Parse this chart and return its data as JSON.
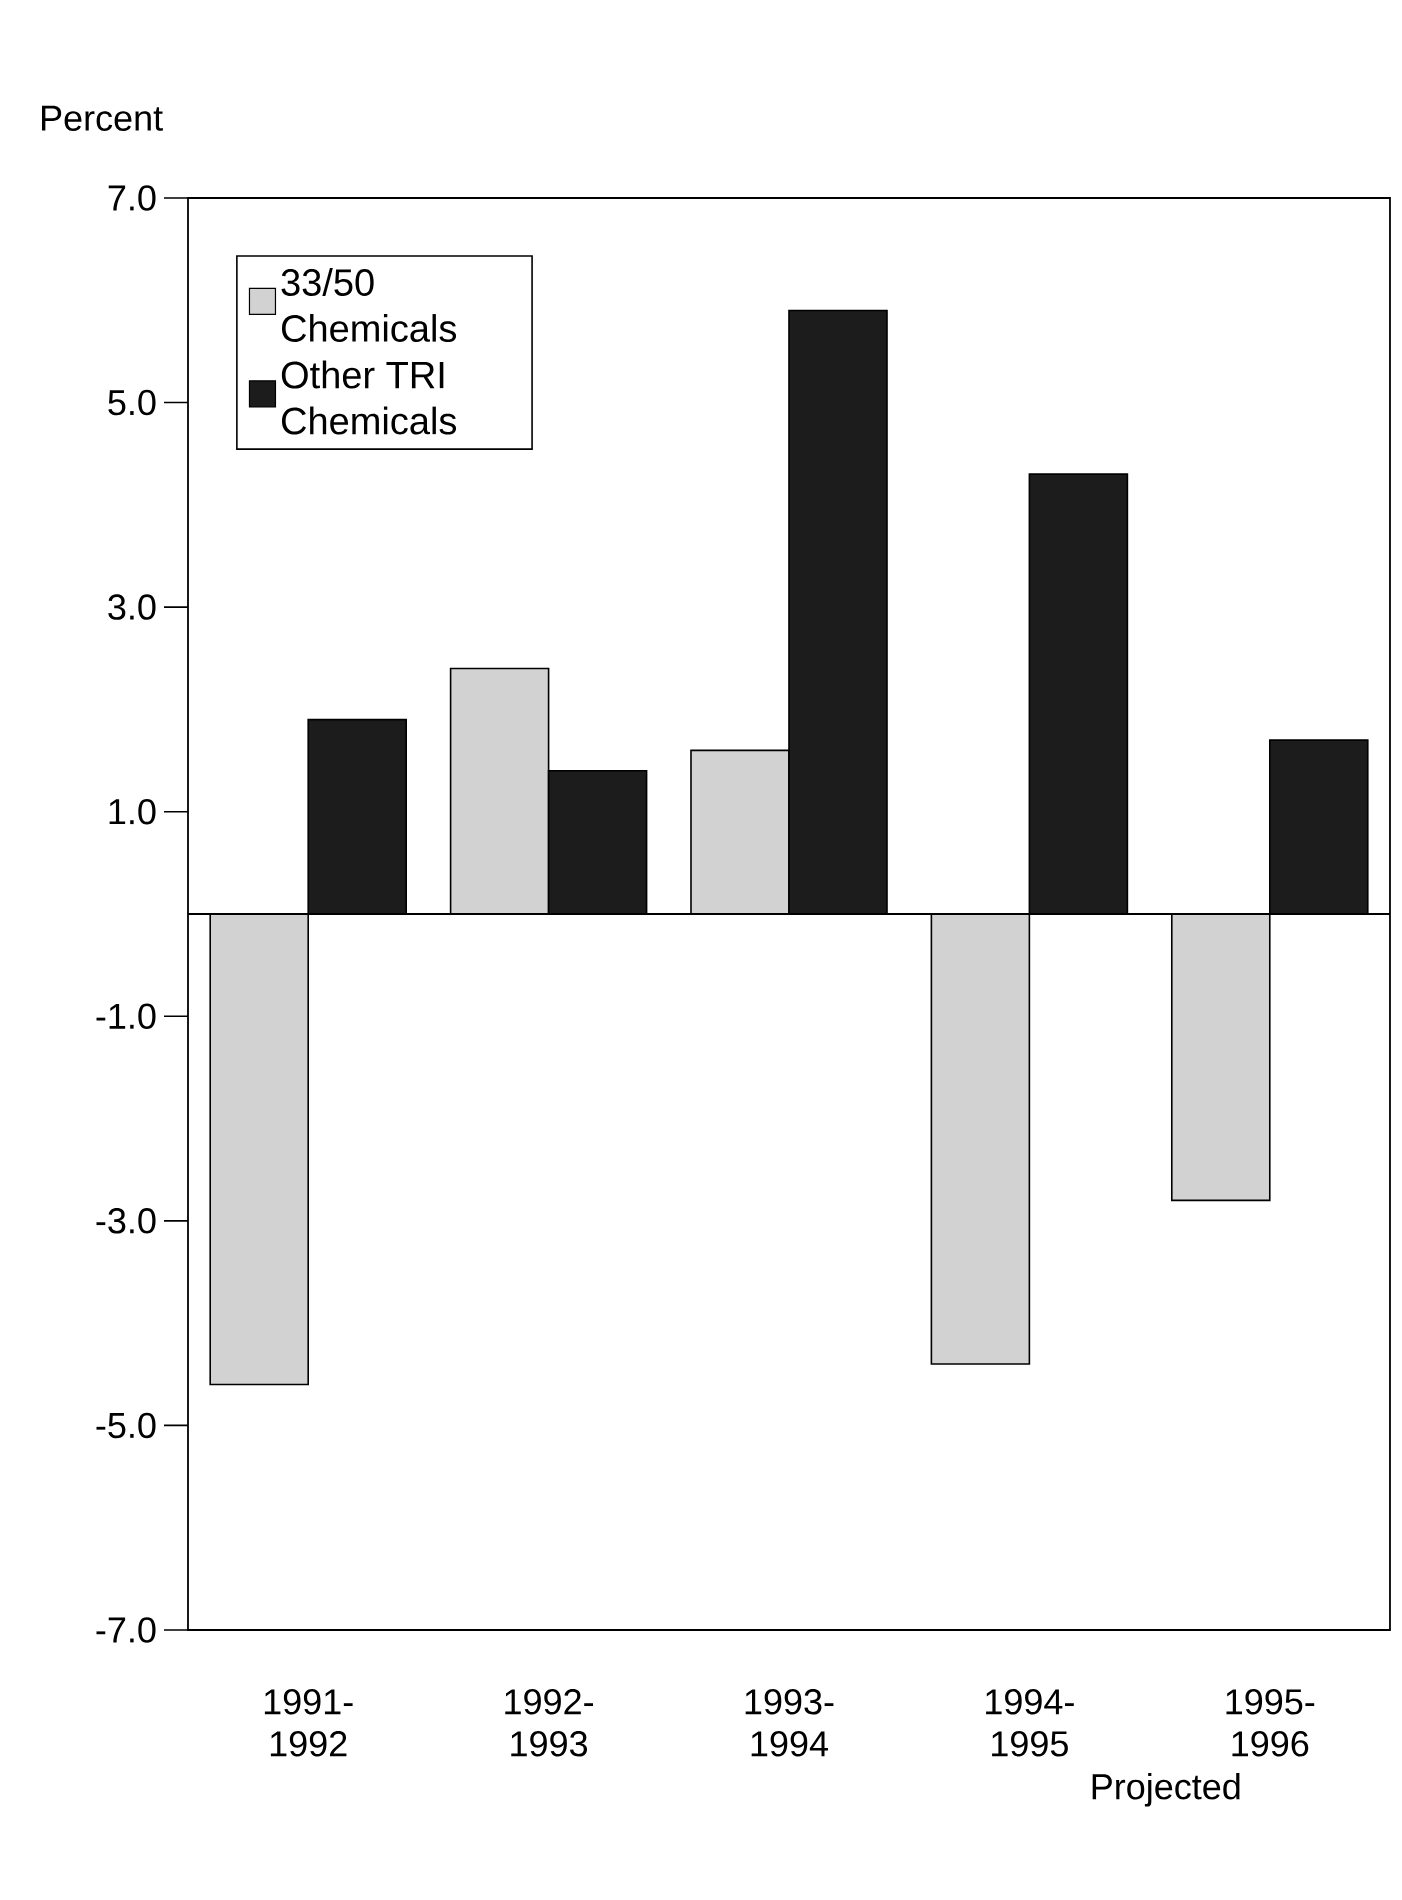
{
  "chart_data": {
    "type": "bar",
    "ylabel": "Percent",
    "categories": [
      "1991- 1992",
      "1992- 1993",
      "1993- 1994",
      "1994- 1995",
      "1995- 1996"
    ],
    "series": [
      {
        "name": "33/50 Chemicals",
        "color": "#d2d2d2",
        "values": [
          -4.6,
          2.4,
          1.6,
          -4.4,
          -2.8
        ]
      },
      {
        "name": "Other TRI Chemicals",
        "color": "#1c1c1c",
        "values": [
          1.9,
          1.4,
          5.9,
          4.3,
          1.7
        ]
      }
    ],
    "ylim": [
      -7,
      7
    ],
    "yticks": [
      {
        "value": -7,
        "label": "-7.0"
      },
      {
        "value": -5,
        "label": "-5.0"
      },
      {
        "value": -3,
        "label": "-3.0"
      },
      {
        "value": -1,
        "label": "-1.0"
      },
      {
        "value": 1,
        "label": "1.0"
      },
      {
        "value": 3,
        "label": "3.0"
      },
      {
        "value": 5,
        "label": "5.0"
      },
      {
        "value": 7,
        "label": "7.0"
      }
    ],
    "annotations": [
      "Projected"
    ],
    "legend": "top left",
    "grid": false
  }
}
